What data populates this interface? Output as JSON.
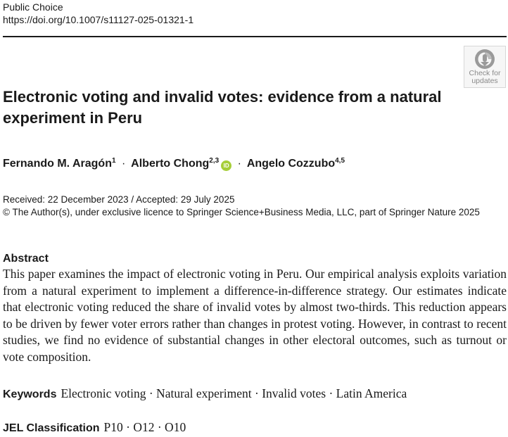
{
  "header": {
    "journal": "Public Choice",
    "doi": "https://doi.org/10.1007/s11127-025-01321-1"
  },
  "badge": {
    "icon": "check-for-updates-icon",
    "line1": "Check for",
    "line2": "updates"
  },
  "title": "Electronic voting and invalid votes: evidence from a natural experiment in Peru",
  "authors": [
    {
      "name": "Fernando M. Aragón",
      "affil": "1"
    },
    {
      "name": "Alberto Chong",
      "affil": "2,3",
      "orcid_icon": "ID"
    },
    {
      "name": "Angelo Cozzubo",
      "affil": "4,5"
    }
  ],
  "separator": "·",
  "dates": "Received: 22 December 2023 / Accepted: 29 July 2025",
  "copyright": "© The Author(s), under exclusive licence to Springer Science+Business Media, LLC, part of Springer Nature 2025",
  "abstract": {
    "heading": "Abstract",
    "text": "This paper examines the impact of electronic voting in Peru. Our empirical analysis exploits variation from a natural experiment to implement a difference-in-difference strategy. Our estimates indicate that electronic voting reduced the share of invalid votes by almost two-thirds. This reduction appears to be driven by fewer voter errors rather than changes in protest voting. However, in contrast to recent studies, we find no evidence of substantial changes in other electoral outcomes, such as turnout or vote composition."
  },
  "keywords": {
    "label": "Keywords",
    "text": "Electronic voting · Natural experiment · Invalid votes · Latin America"
  },
  "jel": {
    "label": "JEL Classification",
    "text": "P10 · O12 · O10"
  },
  "colors": {
    "orcid": "#a6ce39",
    "badge_gray": "#8a8a8a"
  }
}
